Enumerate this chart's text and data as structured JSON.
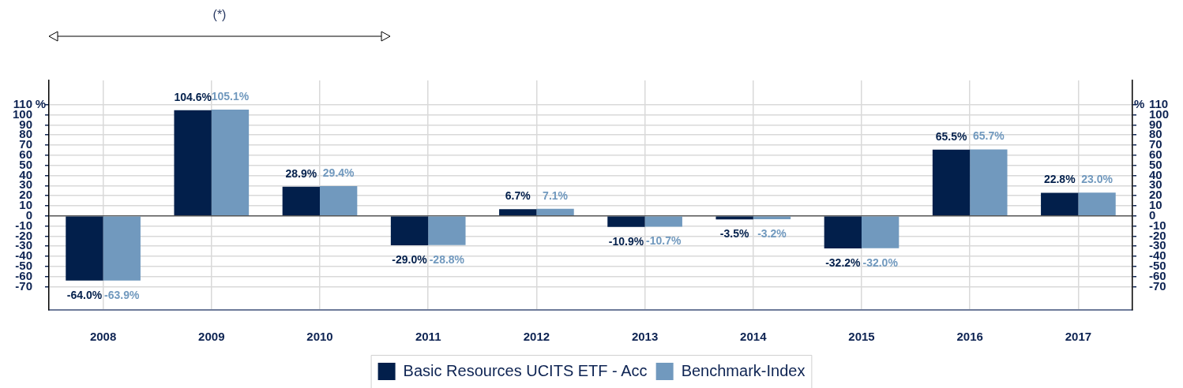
{
  "chart_data": {
    "type": "bar",
    "annotations": [
      "(*)"
    ],
    "ylabel": "%",
    "y2label": "%",
    "categories": [
      "2008",
      "2009",
      "2010",
      "2011",
      "2012",
      "2013",
      "2014",
      "2015",
      "2016",
      "2017"
    ],
    "series": [
      {
        "name": "Basic Resources UCITS ETF - Acc",
        "color": "#021f4b",
        "values": [
          -64.0,
          104.6,
          28.9,
          -29.0,
          6.7,
          -10.9,
          -3.5,
          -32.2,
          65.5,
          22.8
        ],
        "value_labels": [
          "-64.0%",
          "104.6%",
          "28.9%",
          "-29.0%",
          "6.7%",
          "-10.9%",
          "-3.5%",
          "-32.2%",
          "65.5%",
          "22.8%"
        ]
      },
      {
        "name": "Benchmark-Index",
        "color": "#7199be",
        "values": [
          -63.9,
          105.1,
          29.4,
          -28.8,
          7.1,
          -10.7,
          -3.2,
          -32.0,
          65.7,
          23.0
        ],
        "value_labels": [
          "-63.9%",
          "105.1%",
          "29.4%",
          "-28.8%",
          "7.1%",
          "-10.7%",
          "-3.2%",
          "-32.0%",
          "65.7%",
          "23.0%"
        ]
      }
    ],
    "ylim": [
      -93,
      134
    ],
    "yticks": [
      -70,
      -60,
      -50,
      -40,
      -30,
      -20,
      -10,
      0,
      10,
      20,
      30,
      40,
      50,
      60,
      70,
      80,
      90,
      100,
      110
    ],
    "y2lim": [
      -93,
      134
    ],
    "y2ticks": [
      -70,
      -60,
      -50,
      -40,
      -30,
      -20,
      -10,
      0,
      10,
      20,
      30,
      40,
      50,
      60,
      70,
      80,
      90,
      100,
      110
    ],
    "grid": true,
    "legend": "bottom"
  }
}
